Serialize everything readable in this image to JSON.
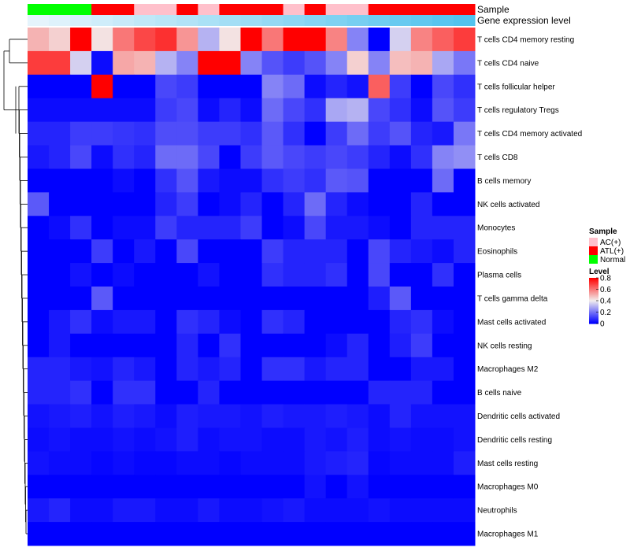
{
  "chart_data": {
    "type": "heatmap",
    "title": "",
    "column_annotations": [
      {
        "name": "Sample",
        "values": [
          "Normal",
          "Normal",
          "Normal",
          "ATL(+)",
          "ATL(+)",
          "AC(+)",
          "AC(+)",
          "ATL(+)",
          "AC(+)",
          "ATL(+)",
          "ATL(+)",
          "ATL(+)",
          "AC(+)",
          "ATL(+)",
          "AC(+)",
          "AC(+)",
          "ATL(+)",
          "ATL(+)",
          "ATL(+)",
          "ATL(+)",
          "ATL(+)"
        ]
      },
      {
        "name": "Gene expression level",
        "values": [
          0.02,
          0.05,
          0.08,
          0.11,
          0.14,
          0.17,
          0.2,
          0.23,
          0.26,
          0.29,
          0.32,
          0.35,
          0.38,
          0.41,
          0.44,
          0.47,
          0.5,
          0.53,
          0.56,
          0.59,
          0.62
        ]
      }
    ],
    "rows": [
      "T cells CD4 memory resting",
      "T cells CD4 naive",
      "T cells follicular helper",
      "T cells regulatory  Tregs",
      "T cells CD4 memory activated",
      "T cells CD8",
      "B cells memory",
      "NK cells activated",
      "Monocytes",
      "Eosinophils",
      "Plasma cells",
      "T cells gamma delta",
      "Mast cells activated",
      "NK cells resting",
      "Macrophages M2",
      "B cells naive",
      "Dendritic cells activated",
      "Dendritic cells resting",
      "Mast cells resting",
      "Macrophages M0",
      "Neutrophils",
      "Macrophages M1"
    ],
    "values": [
      [
        0.5,
        0.45,
        0.8,
        0.42,
        0.6,
        0.68,
        0.72,
        0.55,
        0.3,
        0.42,
        0.8,
        0.6,
        0.8,
        0.8,
        0.58,
        0.22,
        0.0,
        0.35,
        0.58,
        0.64,
        0.7
      ],
      [
        0.7,
        0.7,
        0.35,
        0.02,
        0.52,
        0.5,
        0.3,
        0.22,
        0.8,
        0.8,
        0.22,
        0.14,
        0.1,
        0.14,
        0.22,
        0.45,
        0.22,
        0.48,
        0.5,
        0.28,
        0.2
      ],
      [
        0.0,
        0.0,
        0.0,
        0.8,
        0.0,
        0.0,
        0.12,
        0.1,
        0.0,
        0.0,
        0.0,
        0.22,
        0.18,
        0.02,
        0.06,
        0.03,
        0.64,
        0.1,
        0.0,
        0.12,
        0.08
      ],
      [
        0.02,
        0.02,
        0.02,
        0.02,
        0.02,
        0.02,
        0.1,
        0.12,
        0.02,
        0.06,
        0.02,
        0.18,
        0.12,
        0.08,
        0.28,
        0.3,
        0.12,
        0.08,
        0.02,
        0.14,
        0.1
      ],
      [
        0.06,
        0.06,
        0.1,
        0.1,
        0.09,
        0.08,
        0.13,
        0.13,
        0.1,
        0.1,
        0.08,
        0.15,
        0.08,
        0.0,
        0.1,
        0.18,
        0.1,
        0.14,
        0.06,
        0.04,
        0.2
      ],
      [
        0.04,
        0.06,
        0.12,
        0.02,
        0.08,
        0.06,
        0.18,
        0.18,
        0.12,
        0.0,
        0.1,
        0.15,
        0.12,
        0.1,
        0.12,
        0.1,
        0.06,
        0.02,
        0.08,
        0.22,
        0.24
      ],
      [
        0.0,
        0.0,
        0.0,
        0.0,
        0.02,
        0.0,
        0.08,
        0.14,
        0.04,
        0.02,
        0.02,
        0.08,
        0.1,
        0.08,
        0.15,
        0.14,
        0.0,
        0.0,
        0.0,
        0.18,
        0.0
      ],
      [
        0.15,
        0.0,
        0.0,
        0.0,
        0.0,
        0.0,
        0.06,
        0.1,
        0.0,
        0.02,
        0.06,
        0.0,
        0.06,
        0.18,
        0.06,
        0.02,
        0.0,
        0.0,
        0.06,
        0.0,
        0.0
      ],
      [
        0.0,
        0.02,
        0.08,
        0.0,
        0.02,
        0.02,
        0.1,
        0.06,
        0.06,
        0.06,
        0.1,
        0.0,
        0.02,
        0.12,
        0.04,
        0.04,
        0.02,
        0.0,
        0.06,
        0.06,
        0.06
      ],
      [
        0.0,
        0.0,
        0.0,
        0.1,
        0.0,
        0.04,
        0.0,
        0.12,
        0.0,
        0.0,
        0.0,
        0.1,
        0.06,
        0.06,
        0.06,
        0.0,
        0.12,
        0.06,
        0.04,
        0.02,
        0.06
      ],
      [
        0.0,
        0.0,
        0.03,
        0.0,
        0.02,
        0.0,
        0.0,
        0.0,
        0.03,
        0.0,
        0.0,
        0.08,
        0.06,
        0.06,
        0.08,
        0.0,
        0.12,
        0.0,
        0.0,
        0.08,
        0.0
      ],
      [
        0.0,
        0.0,
        0.0,
        0.15,
        0.0,
        0.0,
        0.0,
        0.0,
        0.0,
        0.0,
        0.0,
        0.0,
        0.0,
        0.0,
        0.0,
        0.0,
        0.05,
        0.15,
        0.0,
        0.0,
        0.0
      ],
      [
        0.0,
        0.04,
        0.08,
        0.02,
        0.04,
        0.04,
        0.0,
        0.08,
        0.06,
        0.02,
        0.0,
        0.08,
        0.06,
        0.0,
        0.0,
        0.0,
        0.0,
        0.06,
        0.08,
        0.02,
        0.0
      ],
      [
        0.0,
        0.04,
        0.0,
        0.0,
        0.0,
        0.0,
        0.0,
        0.06,
        0.0,
        0.08,
        0.0,
        0.0,
        0.0,
        0.0,
        0.02,
        0.06,
        0.0,
        0.05,
        0.1,
        0.0,
        0.0
      ],
      [
        0.06,
        0.06,
        0.04,
        0.03,
        0.06,
        0.04,
        0.0,
        0.06,
        0.04,
        0.06,
        0.0,
        0.08,
        0.08,
        0.04,
        0.06,
        0.06,
        0.0,
        0.0,
        0.04,
        0.04,
        0.0
      ],
      [
        0.06,
        0.06,
        0.08,
        0.0,
        0.08,
        0.08,
        0.0,
        0.0,
        0.06,
        0.0,
        0.0,
        0.0,
        0.0,
        0.0,
        0.0,
        0.0,
        0.06,
        0.06,
        0.06,
        0.0,
        0.0
      ],
      [
        0.03,
        0.04,
        0.05,
        0.03,
        0.05,
        0.04,
        0.02,
        0.05,
        0.04,
        0.04,
        0.03,
        0.05,
        0.04,
        0.04,
        0.05,
        0.04,
        0.02,
        0.06,
        0.03,
        0.03,
        0.03
      ],
      [
        0.02,
        0.03,
        0.02,
        0.02,
        0.03,
        0.02,
        0.03,
        0.05,
        0.02,
        0.03,
        0.03,
        0.02,
        0.02,
        0.04,
        0.03,
        0.05,
        0.02,
        0.03,
        0.02,
        0.02,
        0.03
      ],
      [
        0.03,
        0.02,
        0.02,
        0.01,
        0.02,
        0.01,
        0.01,
        0.02,
        0.02,
        0.01,
        0.02,
        0.02,
        0.02,
        0.04,
        0.05,
        0.06,
        0.01,
        0.02,
        0.02,
        0.02,
        0.05
      ],
      [
        0.0,
        0.0,
        0.0,
        0.0,
        0.0,
        0.0,
        0.0,
        0.0,
        0.0,
        0.0,
        0.0,
        0.0,
        0.0,
        0.03,
        0.0,
        0.03,
        0.0,
        0.0,
        0.0,
        0.0,
        0.0
      ],
      [
        0.04,
        0.06,
        0.02,
        0.02,
        0.04,
        0.04,
        0.02,
        0.02,
        0.04,
        0.02,
        0.02,
        0.03,
        0.04,
        0.02,
        0.02,
        0.02,
        0.03,
        0.02,
        0.02,
        0.02,
        0.02
      ],
      [
        0.0,
        0.0,
        0.0,
        0.0,
        0.0,
        0.0,
        0.0,
        0.0,
        0.0,
        0.0,
        0.0,
        0.0,
        0.0,
        0.0,
        0.0,
        0.0,
        0.0,
        0.0,
        0.0,
        0.0,
        0.0
      ]
    ],
    "color_scale": {
      "stops": [
        0,
        0.4,
        0.8
      ],
      "colors": [
        "#0000ff",
        "#f2eeee",
        "#ff0000"
      ]
    },
    "gene_track_colors": [
      "#eaf6fc",
      "#52c3ee"
    ],
    "legend": {
      "sample_title": "Sample",
      "sample_entries": [
        {
          "label": "AC(+)",
          "color": "#ffc0cb"
        },
        {
          "label": "ATL(+)",
          "color": "#ff0000"
        },
        {
          "label": "Normal",
          "color": "#00ff00"
        }
      ],
      "level_title": "Level",
      "level_ticks": [
        "0.8",
        "0.6",
        "0.4",
        "0.2",
        "0"
      ],
      "level_tick_values": [
        0.8,
        0.6,
        0.4,
        0.2,
        0
      ]
    }
  }
}
